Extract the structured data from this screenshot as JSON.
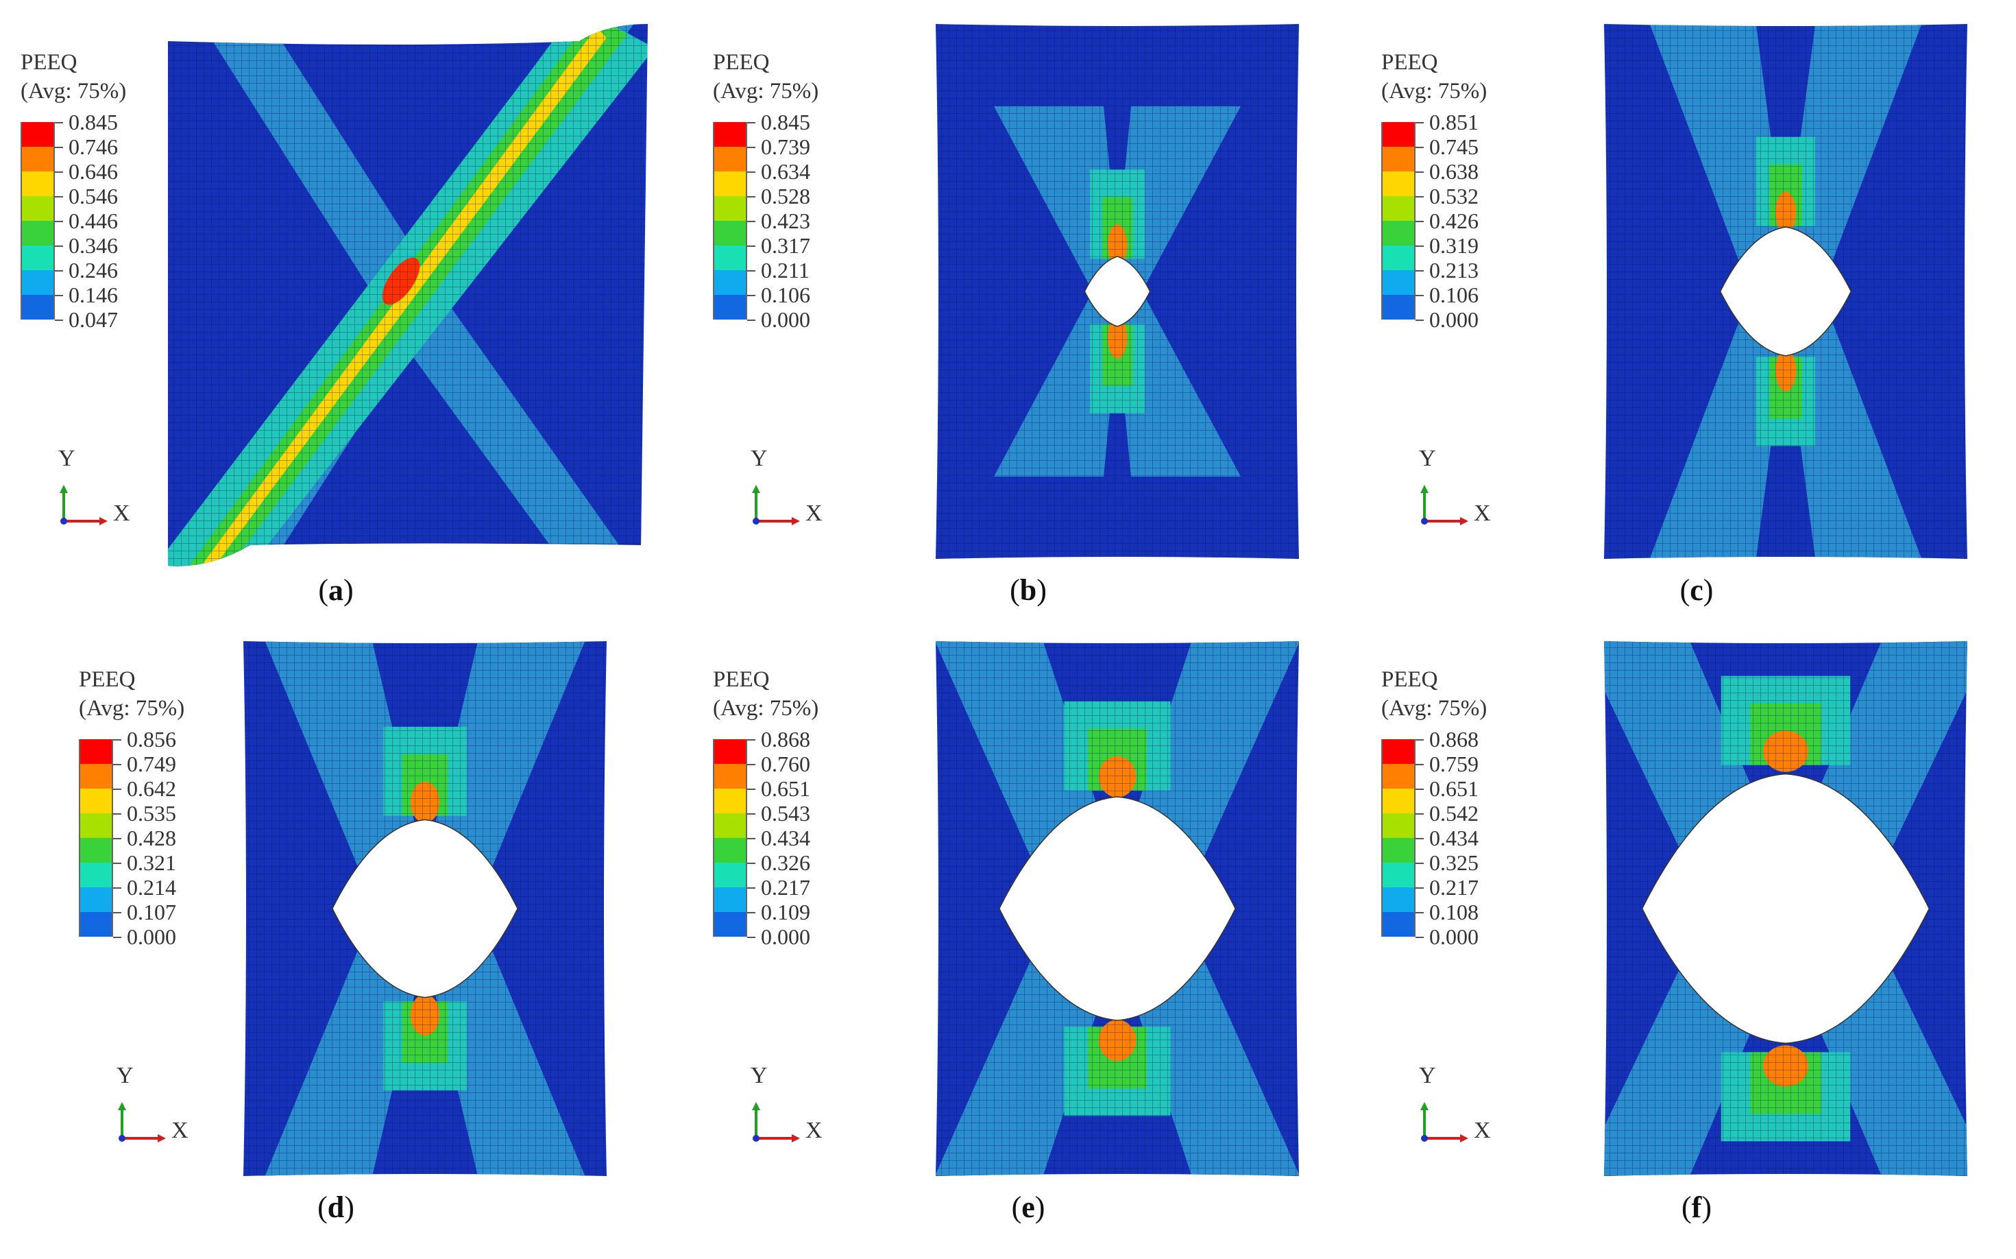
{
  "panels": [
    {
      "id": "a",
      "caption_letter": "a",
      "legend_title": "PEEQ",
      "legend_sub": "(Avg: 75%)",
      "legend_values": [
        "0.845",
        "0.746",
        "0.646",
        "0.546",
        "0.446",
        "0.346",
        "0.246",
        "0.146",
        "0.047"
      ],
      "hole_diameter_ratio": 0,
      "band": "diagonal"
    },
    {
      "id": "b",
      "caption_letter": "b",
      "legend_title": "PEEQ",
      "legend_sub": "(Avg: 75%)",
      "legend_values": [
        "0.845",
        "0.739",
        "0.634",
        "0.528",
        "0.423",
        "0.317",
        "0.211",
        "0.106",
        "0.000"
      ],
      "hole_diameter_ratio": 0.18,
      "band": "x"
    },
    {
      "id": "c",
      "caption_letter": "c",
      "legend_title": "PEEQ",
      "legend_sub": "(Avg: 75%)",
      "legend_values": [
        "0.851",
        "0.745",
        "0.638",
        "0.532",
        "0.426",
        "0.319",
        "0.213",
        "0.106",
        "0.000"
      ],
      "hole_diameter_ratio": 0.36,
      "band": "x"
    },
    {
      "id": "d",
      "caption_letter": "d",
      "legend_title": "PEEQ",
      "legend_sub": "(Avg: 75%)",
      "legend_values": [
        "0.856",
        "0.749",
        "0.642",
        "0.535",
        "0.428",
        "0.321",
        "0.214",
        "0.107",
        "0.000"
      ],
      "hole_diameter_ratio": 0.51,
      "band": "x"
    },
    {
      "id": "e",
      "caption_letter": "e",
      "legend_title": "PEEQ",
      "legend_sub": "(Avg: 75%)",
      "legend_values": [
        "0.868",
        "0.760",
        "0.651",
        "0.543",
        "0.434",
        "0.326",
        "0.217",
        "0.109",
        "0.000"
      ],
      "hole_diameter_ratio": 0.65,
      "band": "x"
    },
    {
      "id": "f",
      "caption_letter": "f",
      "legend_title": "PEEQ",
      "legend_sub": "(Avg: 75%)",
      "legend_values": [
        "0.868",
        "0.759",
        "0.651",
        "0.542",
        "0.434",
        "0.325",
        "0.217",
        "0.108",
        "0.000"
      ],
      "hole_diameter_ratio": 0.79,
      "band": "x"
    }
  ],
  "axis_labels": {
    "y": "Y",
    "x": "X"
  },
  "colors": {
    "contour_scale": [
      "#ff0000",
      "#ff7f00",
      "#ffd700",
      "#a8e000",
      "#3ad23a",
      "#19e0b4",
      "#10aaee",
      "#1268e0",
      "#0000ff"
    ],
    "background_field": "#1431b8",
    "mesh_line": "#0a1466",
    "band_outer": "#2b8fcf",
    "band_inner": "#21c7b8"
  }
}
